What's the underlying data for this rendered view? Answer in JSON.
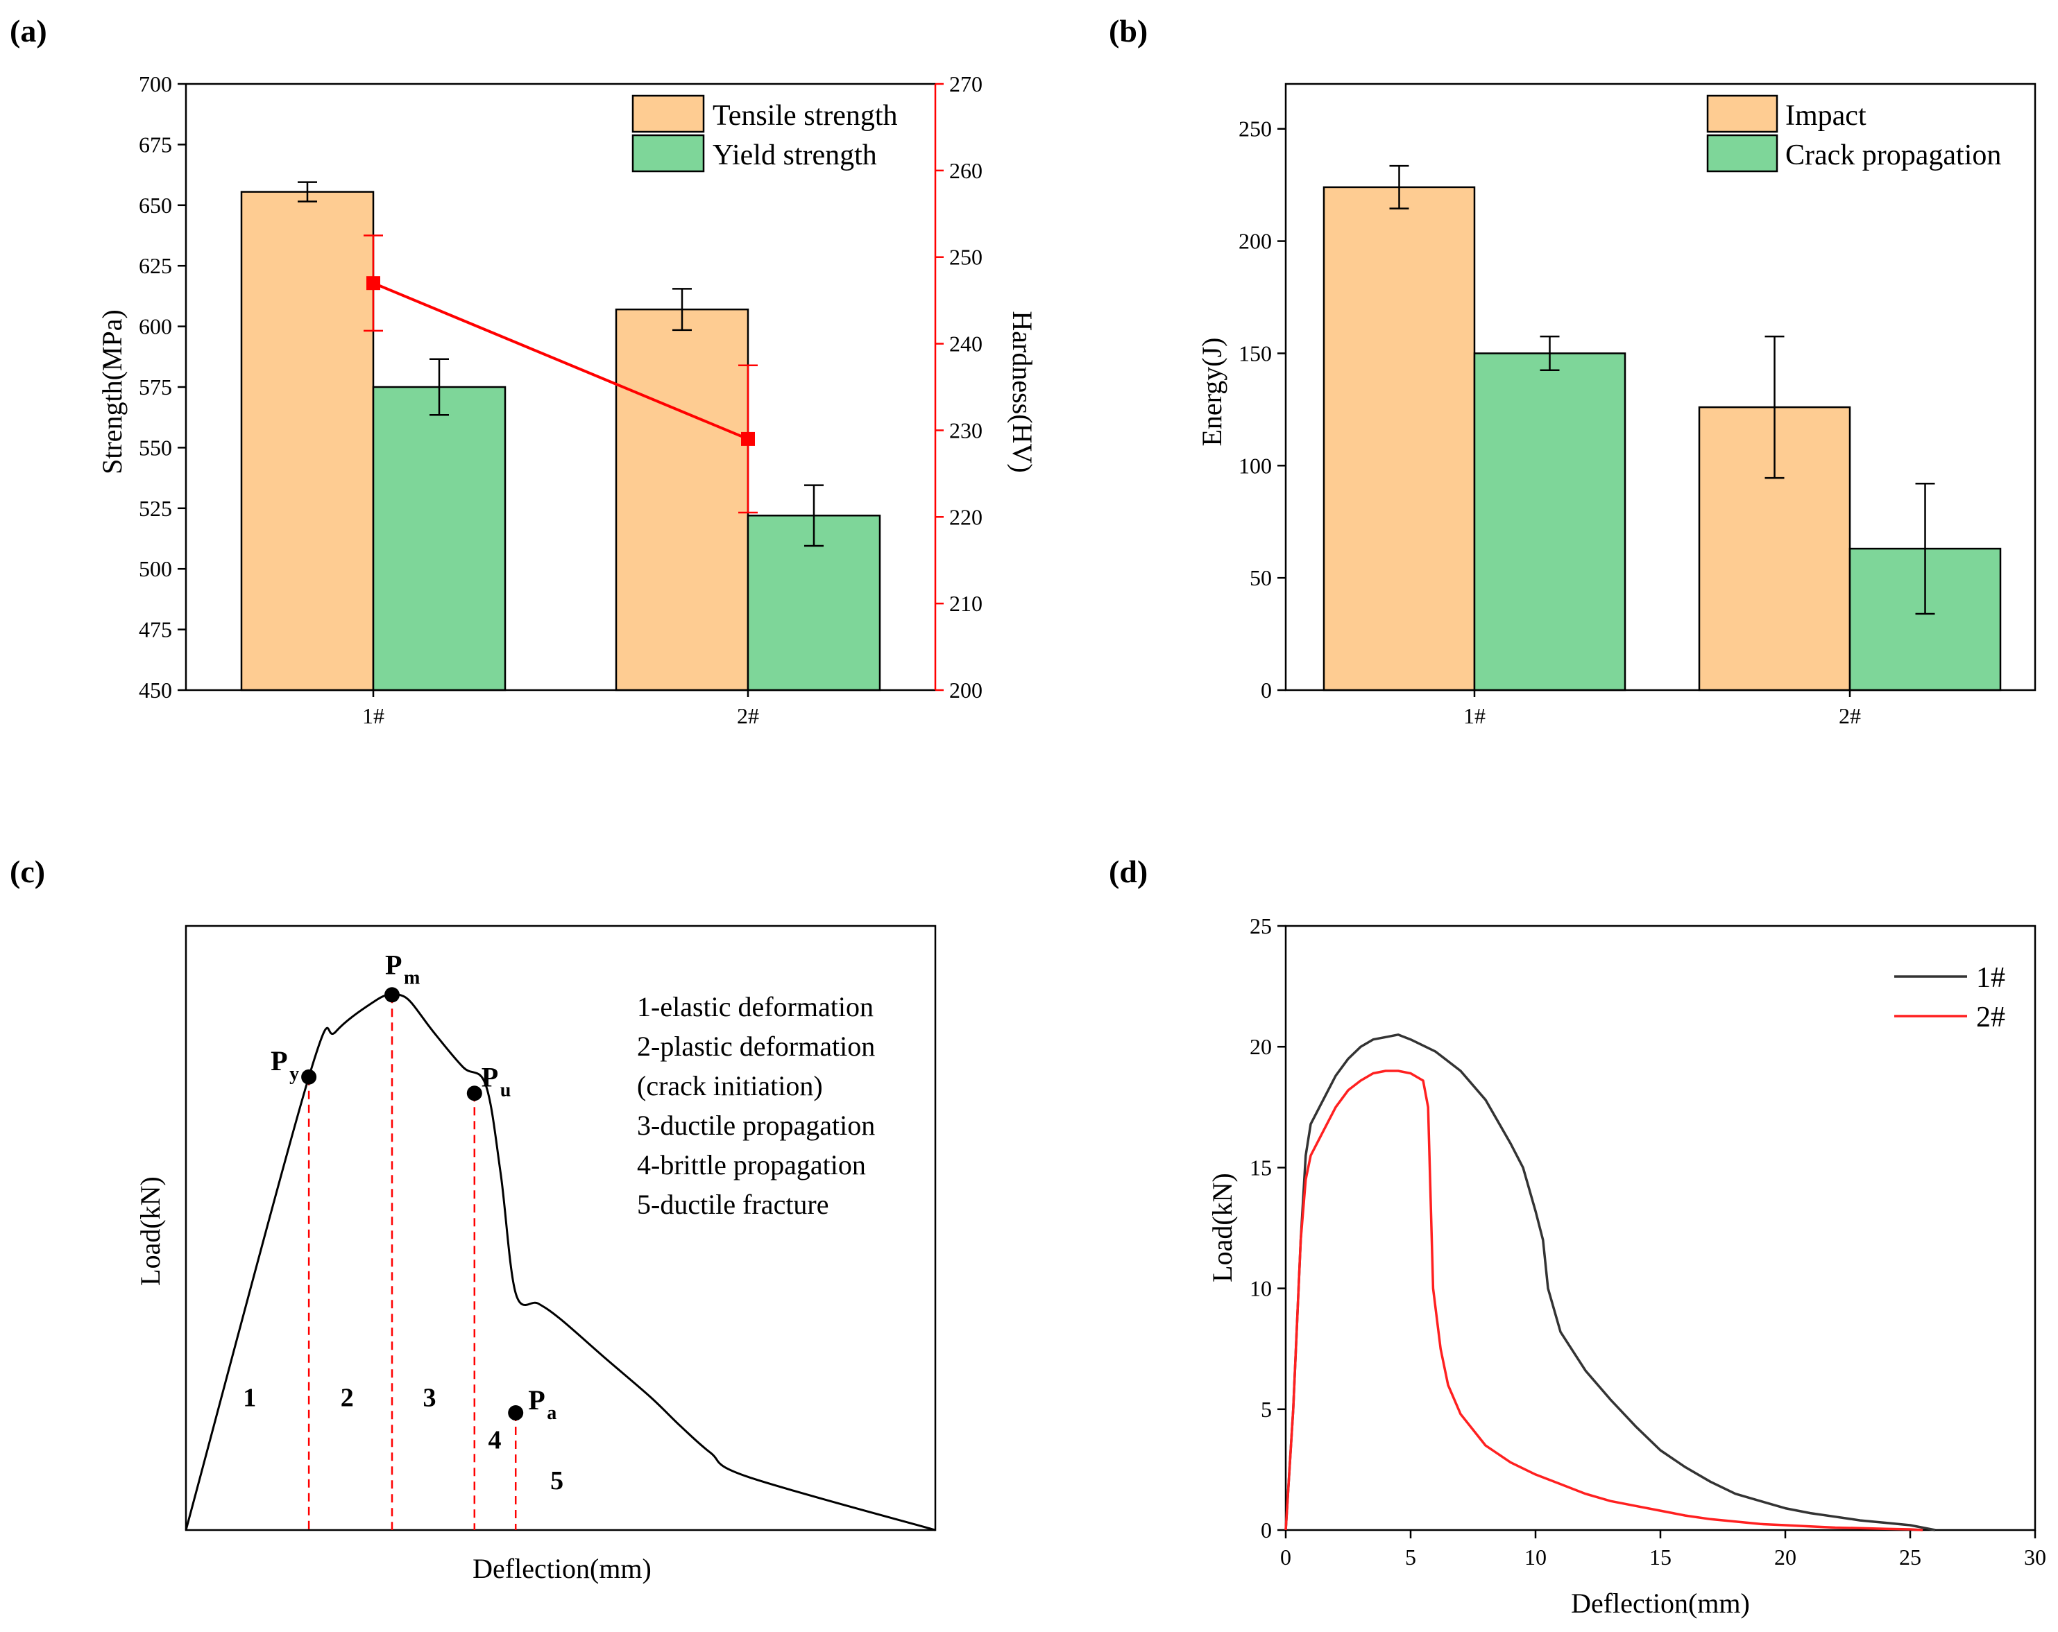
{
  "colors": {
    "tensile": "#FECC92",
    "yield": "#7ED699",
    "hardness": "#FF0000",
    "series1": "#333333",
    "series2": "#FF2020",
    "marker_line": "#FF0000"
  },
  "chart_data": [
    {
      "panel": "(a)",
      "type": "bar",
      "categories": [
        "1#",
        "2#"
      ],
      "series": [
        {
          "name": "Tensile strength",
          "values": [
            655.5,
            607
          ],
          "errors": [
            4,
            8.5
          ]
        },
        {
          "name": "Yield strength",
          "values": [
            575,
            522
          ],
          "errors": [
            11.5,
            12.5
          ]
        }
      ],
      "secondary_series": {
        "name": "Hardness",
        "type": "line",
        "values": [
          247,
          229
        ],
        "errors": [
          5.5,
          8.5
        ]
      },
      "xlabel": "",
      "ylabel": "Strength(MPa)",
      "ylabel_right": "Hardness(HV)",
      "ylim": [
        450,
        700
      ],
      "yticks": [
        450,
        475,
        500,
        525,
        550,
        575,
        600,
        625,
        650,
        675,
        700
      ],
      "ylim_right": [
        200,
        270
      ],
      "yticks_right": [
        200,
        210,
        220,
        230,
        240,
        250,
        260,
        270
      ],
      "legend": [
        "Tensile strength",
        "Yield strength"
      ],
      "legend_position": "top-right"
    },
    {
      "panel": "(b)",
      "type": "bar",
      "categories": [
        "1#",
        "2#"
      ],
      "series": [
        {
          "name": "Impact",
          "values": [
            224,
            126
          ],
          "errors": [
            9.5,
            31.5
          ]
        },
        {
          "name": "Crack propagation",
          "values": [
            150,
            63
          ],
          "errors": [
            7.5,
            29
          ]
        }
      ],
      "xlabel": "",
      "ylabel": "Energy(J)",
      "ylim": [
        0,
        270
      ],
      "yticks": [
        0,
        50,
        100,
        150,
        200,
        250
      ],
      "legend": [
        "Impact",
        "Crack propagation"
      ],
      "legend_position": "top-right"
    },
    {
      "panel": "(c)",
      "type": "line",
      "title": "",
      "xlabel": "Deflection(mm)",
      "ylabel": "Load(kN)",
      "xlim": [
        0,
        100
      ],
      "ylim": [
        0,
        100
      ],
      "axes_ticks": false,
      "curve": {
        "x": [
          0,
          16.4,
          20,
          25.5,
          27.5,
          28.5,
          30,
          33,
          37,
          40,
          42,
          44,
          47,
          50,
          56,
          62,
          66,
          70,
          75,
          100
        ],
        "y": [
          0,
          75,
          82.5,
          87.8,
          88.6,
          88.6,
          87.4,
          82.5,
          76.6,
          73.7,
          59,
          39.2,
          37.5,
          34.9,
          28.4,
          22,
          17.2,
          12.8,
          8.8,
          0
        ],
        "note": "schematic, arbitrary units"
      },
      "points": [
        {
          "name": "P",
          "sub": "y",
          "x": 16.4,
          "y": 75
        },
        {
          "name": "P",
          "sub": "m",
          "x": 27.5,
          "y": 88.6
        },
        {
          "name": "P",
          "sub": "u",
          "x": 38.5,
          "y": 72.3
        },
        {
          "name": "P",
          "sub": "a",
          "x": 44,
          "y": 19.4
        }
      ],
      "regions": [
        "1",
        "2",
        "3",
        "4",
        "5"
      ],
      "legend_text": [
        "1-elastic deformation",
        "2-plastic deformation",
        "(crack initiation)",
        "3-ductile propagation",
        "4-brittle propagation",
        "5-ductile fracture"
      ]
    },
    {
      "panel": "(d)",
      "type": "line",
      "xlabel": "Deflection(mm)",
      "ylabel": "Load(kN)",
      "xlim": [
        0,
        30
      ],
      "ylim": [
        0,
        25
      ],
      "xticks": [
        0,
        5,
        10,
        15,
        20,
        25,
        30
      ],
      "yticks": [
        0,
        5,
        10,
        15,
        20,
        25
      ],
      "legend": [
        "1#",
        "2#"
      ],
      "legend_position": "top-right",
      "series": [
        {
          "name": "1#",
          "x": [
            0,
            0.3,
            0.6,
            0.8,
            1,
            1.5,
            2,
            2.5,
            3,
            3.5,
            4,
            4.5,
            5,
            6,
            7,
            8,
            9,
            9.5,
            10,
            10.3,
            10.5,
            11,
            12,
            13,
            14,
            15,
            16,
            17,
            18,
            19,
            20,
            21,
            22,
            23,
            24,
            25,
            25.5,
            26
          ],
          "y": [
            0,
            5,
            12,
            15.5,
            16.8,
            17.8,
            18.8,
            19.5,
            20,
            20.3,
            20.4,
            20.5,
            20.3,
            19.8,
            19,
            17.8,
            16,
            15,
            13.2,
            12,
            10,
            8.2,
            6.6,
            5.4,
            4.3,
            3.3,
            2.6,
            2,
            1.5,
            1.2,
            0.9,
            0.7,
            0.55,
            0.4,
            0.3,
            0.2,
            0.1,
            0
          ]
        },
        {
          "name": "2#",
          "x": [
            0,
            0.3,
            0.6,
            0.8,
            1,
            1.5,
            2,
            2.5,
            3,
            3.5,
            4,
            4.5,
            5,
            5.5,
            5.7,
            5.9,
            6.2,
            6.5,
            7,
            8,
            9,
            10,
            11,
            12,
            13,
            14,
            15,
            16,
            17,
            18,
            19,
            20,
            21,
            22,
            23,
            24,
            25,
            25.5
          ],
          "y": [
            0,
            5,
            12,
            14.5,
            15.5,
            16.5,
            17.5,
            18.2,
            18.6,
            18.9,
            19,
            19,
            18.9,
            18.6,
            17.5,
            10,
            7.5,
            6,
            4.8,
            3.5,
            2.8,
            2.3,
            1.9,
            1.5,
            1.2,
            1,
            0.8,
            0.6,
            0.45,
            0.35,
            0.25,
            0.2,
            0.15,
            0.1,
            0.08,
            0.05,
            0.03,
            0
          ]
        }
      ]
    }
  ]
}
